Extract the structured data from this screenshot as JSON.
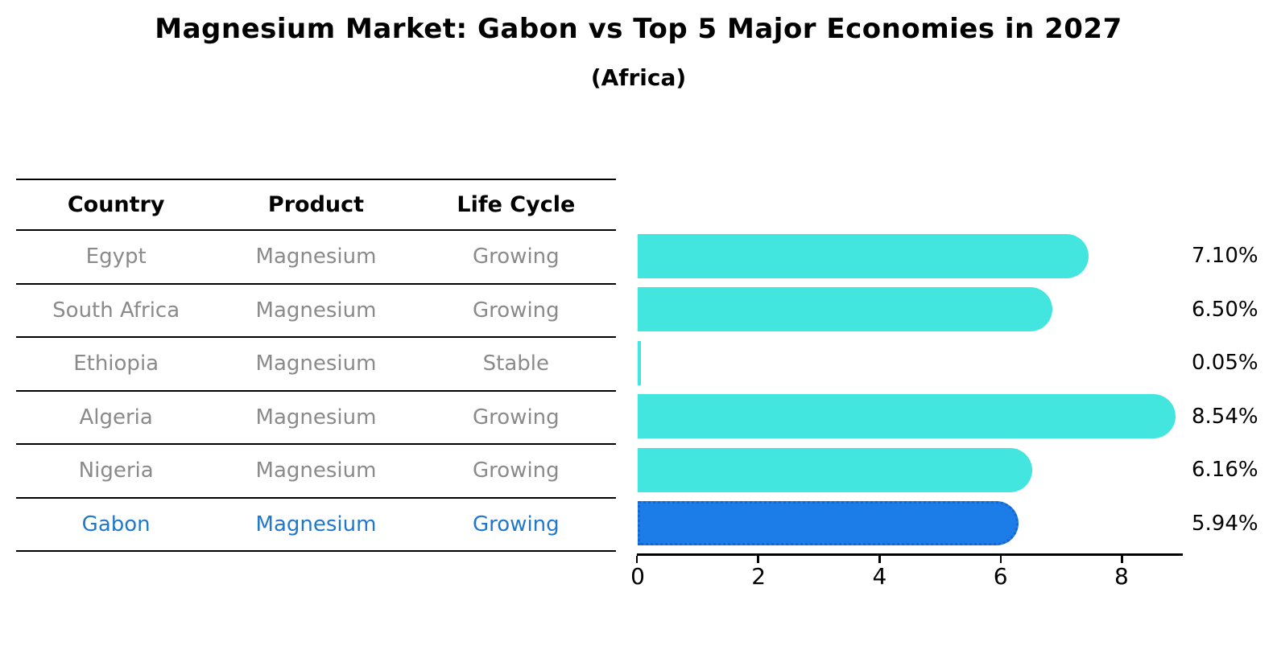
{
  "title": "Magnesium Market: Gabon vs Top 5 Major Economies in 2027",
  "subtitle": "(Africa)",
  "table": {
    "headers": [
      "Country",
      "Product",
      "Life Cycle"
    ],
    "rows": [
      {
        "country": "Egypt",
        "product": "Magnesium",
        "life_cycle": "Growing",
        "highlight": false
      },
      {
        "country": "South Africa",
        "product": "Magnesium",
        "life_cycle": "Growing",
        "highlight": false
      },
      {
        "country": "Ethiopia",
        "product": "Magnesium",
        "life_cycle": "Stable",
        "highlight": false
      },
      {
        "country": "Algeria",
        "product": "Magnesium",
        "life_cycle": "Growing",
        "highlight": false
      },
      {
        "country": "Nigeria",
        "product": "Magnesium",
        "life_cycle": "Growing",
        "highlight": false
      },
      {
        "country": "Gabon",
        "product": "Magnesium",
        "life_cycle": "Growing",
        "highlight": true
      }
    ]
  },
  "chart_data": {
    "type": "bar",
    "orientation": "horizontal",
    "categories": [
      "Egypt",
      "South Africa",
      "Ethiopia",
      "Algeria",
      "Nigeria",
      "Gabon"
    ],
    "values": [
      7.1,
      6.5,
      0.05,
      8.54,
      6.16,
      5.94
    ],
    "labels": [
      "7.10%",
      "6.50%",
      "0.05%",
      "8.54%",
      "6.16%",
      "5.94%"
    ],
    "title": "Magnesium Market: Gabon vs Top 5 Major Economies in 2027",
    "subtitle": "(Africa)",
    "xlabel": "",
    "ylabel": "",
    "xlim": [
      0,
      9
    ],
    "x_ticks": [
      0,
      2,
      4,
      6,
      8
    ],
    "grid": false,
    "legend": false,
    "highlight_index": 5
  },
  "colors": {
    "background": "#FFFFFF",
    "bar_cyan": "#42E6DE",
    "bar_blue": "#1C7CE8",
    "bar_blue_border": "#1565D2",
    "highlight_text": "#1F78CD",
    "table_text": "#8A8A8A",
    "heading_text": "#000000",
    "axis_color": "#000000"
  }
}
